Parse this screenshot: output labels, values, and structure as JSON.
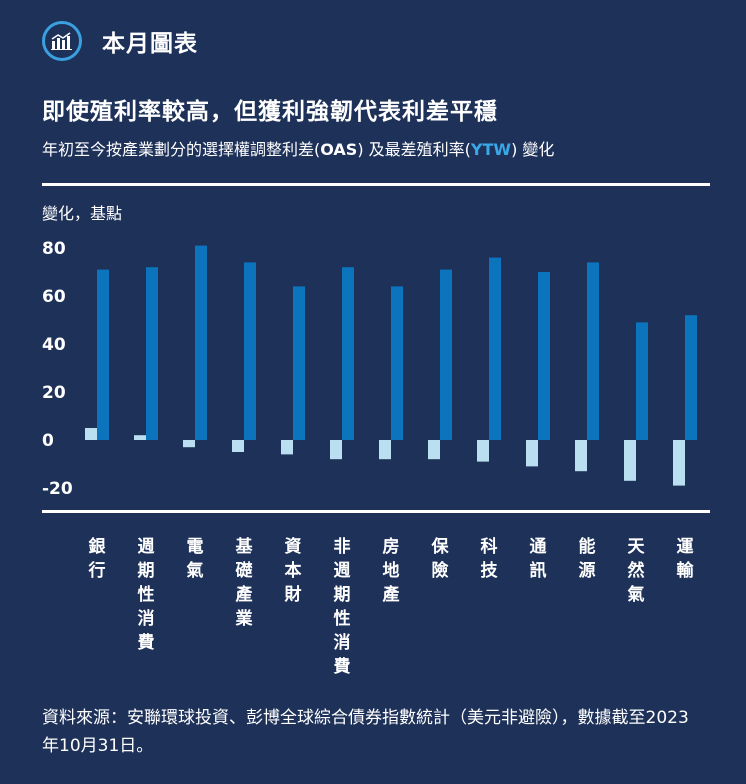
{
  "header": {
    "icon": "bar-chart-icon",
    "title": "本月圖表"
  },
  "colors": {
    "background": "#1e3159",
    "oas_bar": "#b9dff1",
    "ytw_bar": "#0b74bd",
    "accent": "#3aa0e0"
  },
  "chart_data": {
    "type": "bar",
    "title": "即使殖利率較高，但獲利強韌代表利差平穩",
    "subtitle_parts": [
      "年初至今按產業劃分的選擇權調整利差(",
      "OAS",
      ") 及最差殖利率(",
      "YTW",
      ") 變化"
    ],
    "ylabel": "變化，基點",
    "ylim": [
      -20,
      80
    ],
    "yticks": [
      80,
      60,
      40,
      20,
      0,
      -20
    ],
    "categories": [
      "銀行",
      "週期性消費",
      "電氣",
      "基礎產業",
      "資本財",
      "非週期性消費",
      "房地產",
      "保險",
      "科技",
      "通訊",
      "能源",
      "天然氣",
      "運輸"
    ],
    "series": [
      {
        "key": "OAS",
        "color": "#b9dff1",
        "values": [
          5,
          2,
          -3,
          -5,
          -6,
          -8,
          -8,
          -8,
          -9,
          -11,
          -13,
          -17,
          -19
        ]
      },
      {
        "key": "YTW",
        "color": "#0b74bd",
        "values": [
          71,
          72,
          81,
          74,
          64,
          72,
          64,
          71,
          76,
          70,
          74,
          49,
          52
        ]
      }
    ],
    "grid": false,
    "legend": "none"
  },
  "source": "資料來源：安聯環球投資、彭博全球綜合債券指數統計（美元非避險），數據截至2023年10月31日。"
}
